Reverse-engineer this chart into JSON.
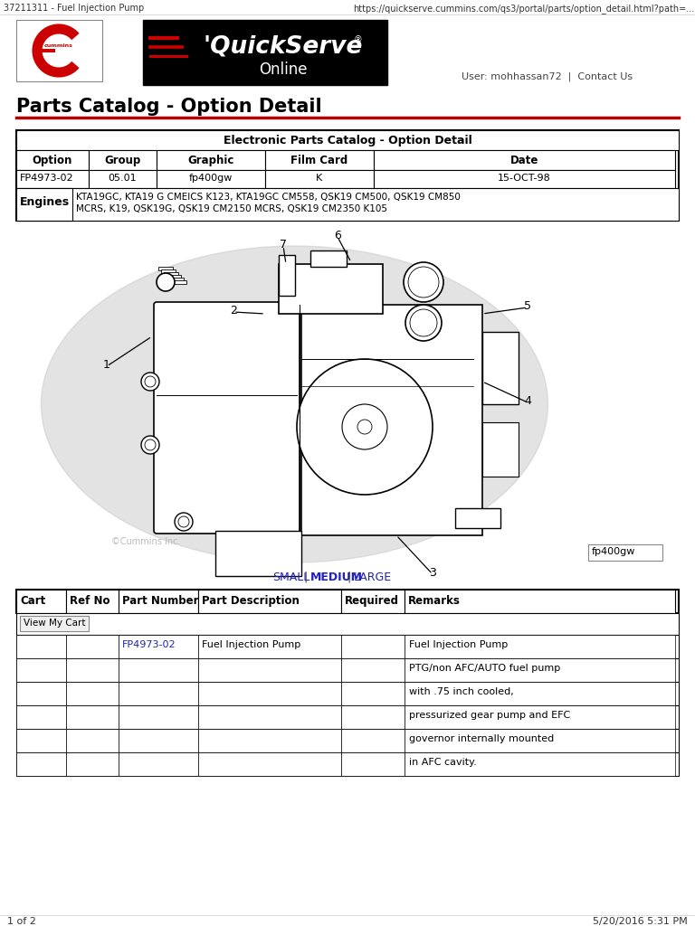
{
  "browser_tab_title": "37211311 - Fuel Injection Pump",
  "browser_url": "https://quickserve.cummins.com/qs3/portal/parts/option_detail.html?path=...",
  "page_title": "Parts Catalog - Option Detail",
  "user_info": "User: mohhassan72  |  Contact Us",
  "catalog_title": "Electronic Parts Catalog - Option Detail",
  "table1_headers": [
    "Option",
    "Group",
    "Graphic",
    "Film Card",
    "Date"
  ],
  "table1_col_widths": [
    80,
    75,
    120,
    120,
    333
  ],
  "table1_row": [
    "FP4973-02",
    "05.01",
    "fp400gw",
    "K",
    "15-OCT-98"
  ],
  "engines_label": "Engines",
  "engines_line1": "KTA19GC, KTA19 G CMEICS K123, KTA19GC CM558, QSK19 CM500, QSK19 CM850",
  "engines_line2": "MCRS, K19, QSK19G, QSK19 CM2150 MCRS, QSK19 CM2350 K105",
  "image_label": "fp400gw",
  "size_links": [
    "SMALL",
    "MEDIUM",
    "LARGE"
  ],
  "table2_headers": [
    "Cart",
    "Ref No",
    "Part Number",
    "Part Description",
    "Required",
    "Remarks"
  ],
  "table2_col_widths": [
    55,
    58,
    88,
    158,
    70,
    299
  ],
  "view_cart_btn": "View My Cart",
  "part_number_link": "FP4973-02",
  "part_description": "Fuel Injection Pump",
  "remarks": [
    "Fuel Injection Pump",
    "PTG/non AFC/AUTO fuel pump",
    "with .75 inch cooled,",
    "pressurized gear pump and EFC",
    "governor internally mounted",
    "in AFC cavity."
  ],
  "footer_left": "1 of 2",
  "footer_right": "5/20/2016 5:31 PM",
  "bg_color": "#ffffff",
  "table_border": "#000000",
  "link_color": "#2222bb",
  "red_line_color": "#bb0000",
  "gray_bg": "#e0e0e0",
  "watermark_color": "#c8c8c8"
}
